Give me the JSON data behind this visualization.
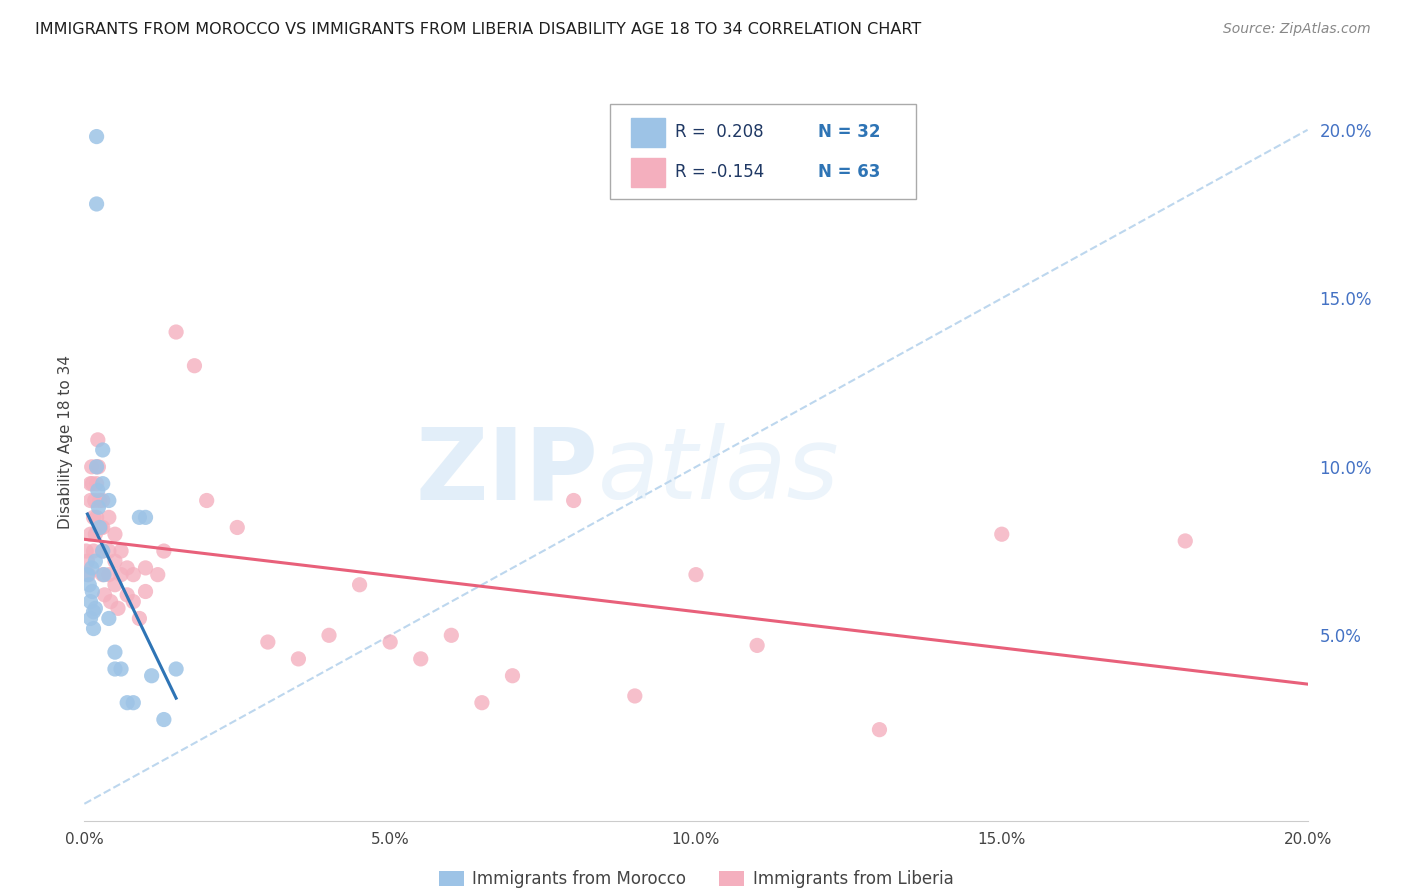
{
  "title": "IMMIGRANTS FROM MOROCCO VS IMMIGRANTS FROM LIBERIA DISABILITY AGE 18 TO 34 CORRELATION CHART",
  "source": "Source: ZipAtlas.com",
  "ylabel": "Disability Age 18 to 34",
  "xlim": [
    0,
    0.2
  ],
  "ylim": [
    -0.005,
    0.22
  ],
  "xticks": [
    0.0,
    0.05,
    0.1,
    0.15,
    0.2
  ],
  "yticks_right": [
    0.05,
    0.1,
    0.15,
    0.2
  ],
  "ytick_labels_right": [
    "5.0%",
    "10.0%",
    "15.0%",
    "20.0%"
  ],
  "xtick_labels": [
    "0.0%",
    "5.0%",
    "10.0%",
    "15.0%",
    "20.0%"
  ],
  "morocco_color": "#9DC3E6",
  "liberia_color": "#F4AFBE",
  "morocco_line_color": "#2E74B5",
  "liberia_line_color": "#E8607A",
  "reference_line_color": "#BDD7EE",
  "morocco_R": 0.208,
  "morocco_N": 32,
  "liberia_R": -0.154,
  "liberia_N": 63,
  "morocco_x": [
    0.0005,
    0.0008,
    0.001,
    0.001,
    0.0012,
    0.0013,
    0.0015,
    0.0015,
    0.0018,
    0.0018,
    0.002,
    0.002,
    0.002,
    0.0022,
    0.0023,
    0.0025,
    0.003,
    0.003,
    0.003,
    0.0032,
    0.004,
    0.004,
    0.005,
    0.005,
    0.006,
    0.007,
    0.008,
    0.009,
    0.01,
    0.011,
    0.013,
    0.015
  ],
  "morocco_y": [
    0.068,
    0.065,
    0.06,
    0.055,
    0.07,
    0.063,
    0.057,
    0.052,
    0.072,
    0.058,
    0.198,
    0.178,
    0.1,
    0.093,
    0.088,
    0.082,
    0.105,
    0.095,
    0.075,
    0.068,
    0.09,
    0.055,
    0.045,
    0.04,
    0.04,
    0.03,
    0.03,
    0.085,
    0.085,
    0.038,
    0.025,
    0.04
  ],
  "liberia_x": [
    0.0003,
    0.0005,
    0.0007,
    0.001,
    0.001,
    0.001,
    0.0012,
    0.0013,
    0.0015,
    0.0015,
    0.0017,
    0.0018,
    0.002,
    0.002,
    0.002,
    0.0022,
    0.0023,
    0.0025,
    0.0027,
    0.003,
    0.003,
    0.003,
    0.003,
    0.0033,
    0.004,
    0.004,
    0.004,
    0.0043,
    0.005,
    0.005,
    0.005,
    0.0055,
    0.006,
    0.006,
    0.007,
    0.007,
    0.008,
    0.008,
    0.009,
    0.01,
    0.01,
    0.012,
    0.013,
    0.015,
    0.018,
    0.02,
    0.025,
    0.03,
    0.035,
    0.04,
    0.045,
    0.05,
    0.055,
    0.06,
    0.065,
    0.07,
    0.08,
    0.09,
    0.1,
    0.11,
    0.13,
    0.15,
    0.18
  ],
  "liberia_y": [
    0.075,
    0.072,
    0.068,
    0.095,
    0.09,
    0.08,
    0.1,
    0.095,
    0.085,
    0.075,
    0.09,
    0.08,
    0.1,
    0.095,
    0.085,
    0.108,
    0.1,
    0.09,
    0.082,
    0.09,
    0.082,
    0.075,
    0.068,
    0.062,
    0.085,
    0.075,
    0.068,
    0.06,
    0.08,
    0.072,
    0.065,
    0.058,
    0.075,
    0.068,
    0.07,
    0.062,
    0.068,
    0.06,
    0.055,
    0.07,
    0.063,
    0.068,
    0.075,
    0.14,
    0.13,
    0.09,
    0.082,
    0.048,
    0.043,
    0.05,
    0.065,
    0.048,
    0.043,
    0.05,
    0.03,
    0.038,
    0.09,
    0.032,
    0.068,
    0.047,
    0.022,
    0.08,
    0.078
  ],
  "watermark_zip": "ZIP",
  "watermark_atlas": "atlas",
  "background_color": "#FFFFFF",
  "grid_color": "#CCCCCC",
  "legend_text_color": "#1F3864",
  "legend_n_color": "#2E74B5"
}
